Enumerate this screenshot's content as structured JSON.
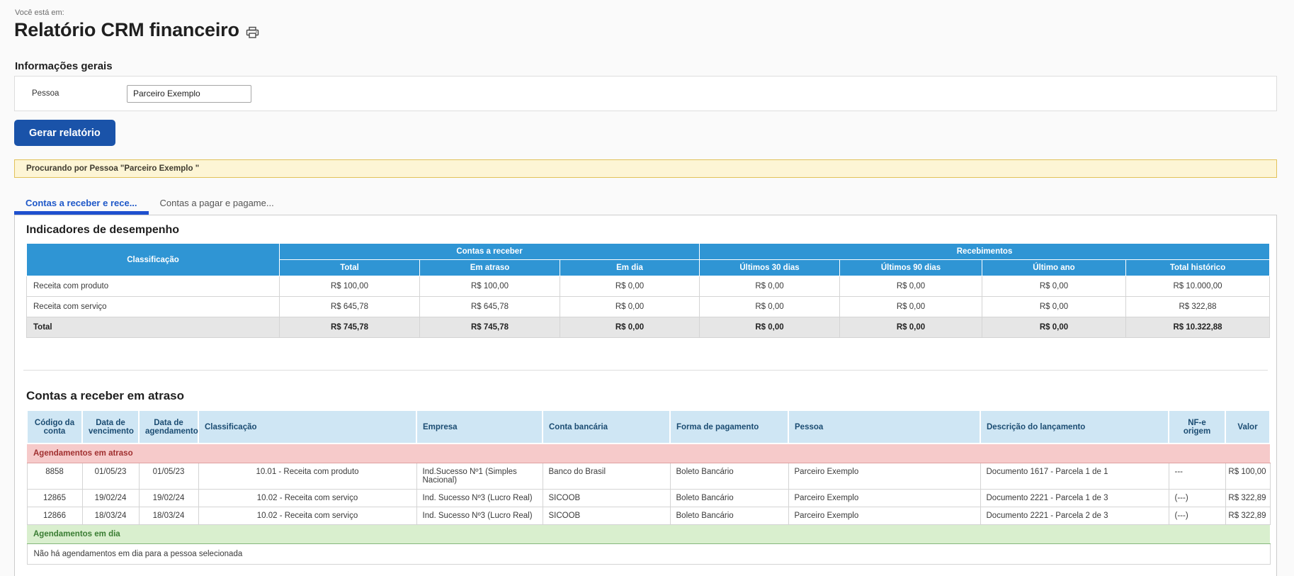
{
  "breadcrumb": "Você está em:",
  "page": {
    "title": "Relatório CRM financeiro"
  },
  "general_info": {
    "heading": "Informações gerais",
    "pessoa_label": "Pessoa",
    "pessoa_value": "Parceiro Exemplo"
  },
  "actions": {
    "generate_button": "Gerar relatório"
  },
  "alert": {
    "text": "Procurando por Pessoa \"Parceiro Exemplo \""
  },
  "tabs": [
    {
      "label": "Contas a receber e rece...",
      "active": true
    },
    {
      "label": "Contas a pagar e pagame...",
      "active": false
    }
  ],
  "indicators": {
    "heading": "Indicadores de desempenho",
    "col_groups": [
      "Contas a receber",
      "Recebimentos"
    ],
    "columns": [
      "Classificação",
      "Total",
      "Em atraso",
      "Em dia",
      "Últimos 30 dias",
      "Últimos 90 dias",
      "Último ano",
      "Total histórico"
    ],
    "rows": [
      {
        "label": "Receita com produto",
        "values": [
          "R$ 100,00",
          "R$ 100,00",
          "R$ 0,00",
          "R$ 0,00",
          "R$ 0,00",
          "R$ 0,00",
          "R$ 10.000,00"
        ]
      },
      {
        "label": "Receita com serviço",
        "values": [
          "R$ 645,78",
          "R$ 645,78",
          "R$ 0,00",
          "R$ 0,00",
          "R$ 0,00",
          "R$ 0,00",
          "R$ 322,88"
        ]
      }
    ],
    "total_row": {
      "label": "Total",
      "values": [
        "R$ 745,78",
        "R$ 745,78",
        "R$ 0,00",
        "R$ 0,00",
        "R$ 0,00",
        "R$ 0,00",
        "R$ 10.322,88"
      ]
    }
  },
  "overdue": {
    "heading": "Contas a receber em atraso",
    "columns": [
      "Código da conta",
      "Data de vencimento",
      "Data de agendamento",
      "Classificação",
      "Empresa",
      "Conta bancária",
      "Forma de pagamento",
      "Pessoa",
      "Descrição do lançamento",
      "NF-e origem",
      "Valor"
    ],
    "sections": [
      {
        "label": "Agendamentos em atraso",
        "type": "overdue",
        "rows": [
          [
            "8858",
            "01/05/23",
            "01/05/23",
            "10.01 - Receita com produto",
            "Ind.Sucesso Nº1 (Simples Nacional)",
            "Banco do Brasil",
            "Boleto Bancário",
            "Parceiro Exemplo",
            "Documento 1617 - Parcela 1 de 1",
            "---",
            "R$ 100,00"
          ],
          [
            "12865",
            "19/02/24",
            "19/02/24",
            "10.02 - Receita com serviço",
            "Ind. Sucesso Nº3 (Lucro Real)",
            "SICOOB",
            "Boleto Bancário",
            "Parceiro Exemplo",
            "Documento 2221 - Parcela 1 de 3",
            "(---)",
            "R$ 322,89"
          ],
          [
            "12866",
            "18/03/24",
            "18/03/24",
            "10.02 - Receita com serviço",
            "Ind. Sucesso Nº3 (Lucro Real)",
            "SICOOB",
            "Boleto Bancário",
            "Parceiro Exemplo",
            "Documento 2221 - Parcela 2 de 3",
            "(---)",
            "R$ 322,89"
          ]
        ]
      },
      {
        "label": "Agendamentos em dia",
        "type": "ontime",
        "rows": [],
        "empty_message": "Não há agendamentos em dia para a pessoa selecionada"
      }
    ],
    "cell_align": [
      "c",
      "c",
      "c",
      "c",
      "l",
      "l",
      "l",
      "l",
      "l",
      "l",
      "r"
    ]
  },
  "colors": {
    "table_header_blue": "#2f95d4",
    "table_header_light_blue": "#cfe6f4",
    "overdue_band_pink": "#f6caca",
    "ontime_band_green": "#d9efce",
    "alert_yellow": "#fdf5d5",
    "button_blue": "#1a53a9",
    "active_tab_blue": "#1f58c8"
  }
}
